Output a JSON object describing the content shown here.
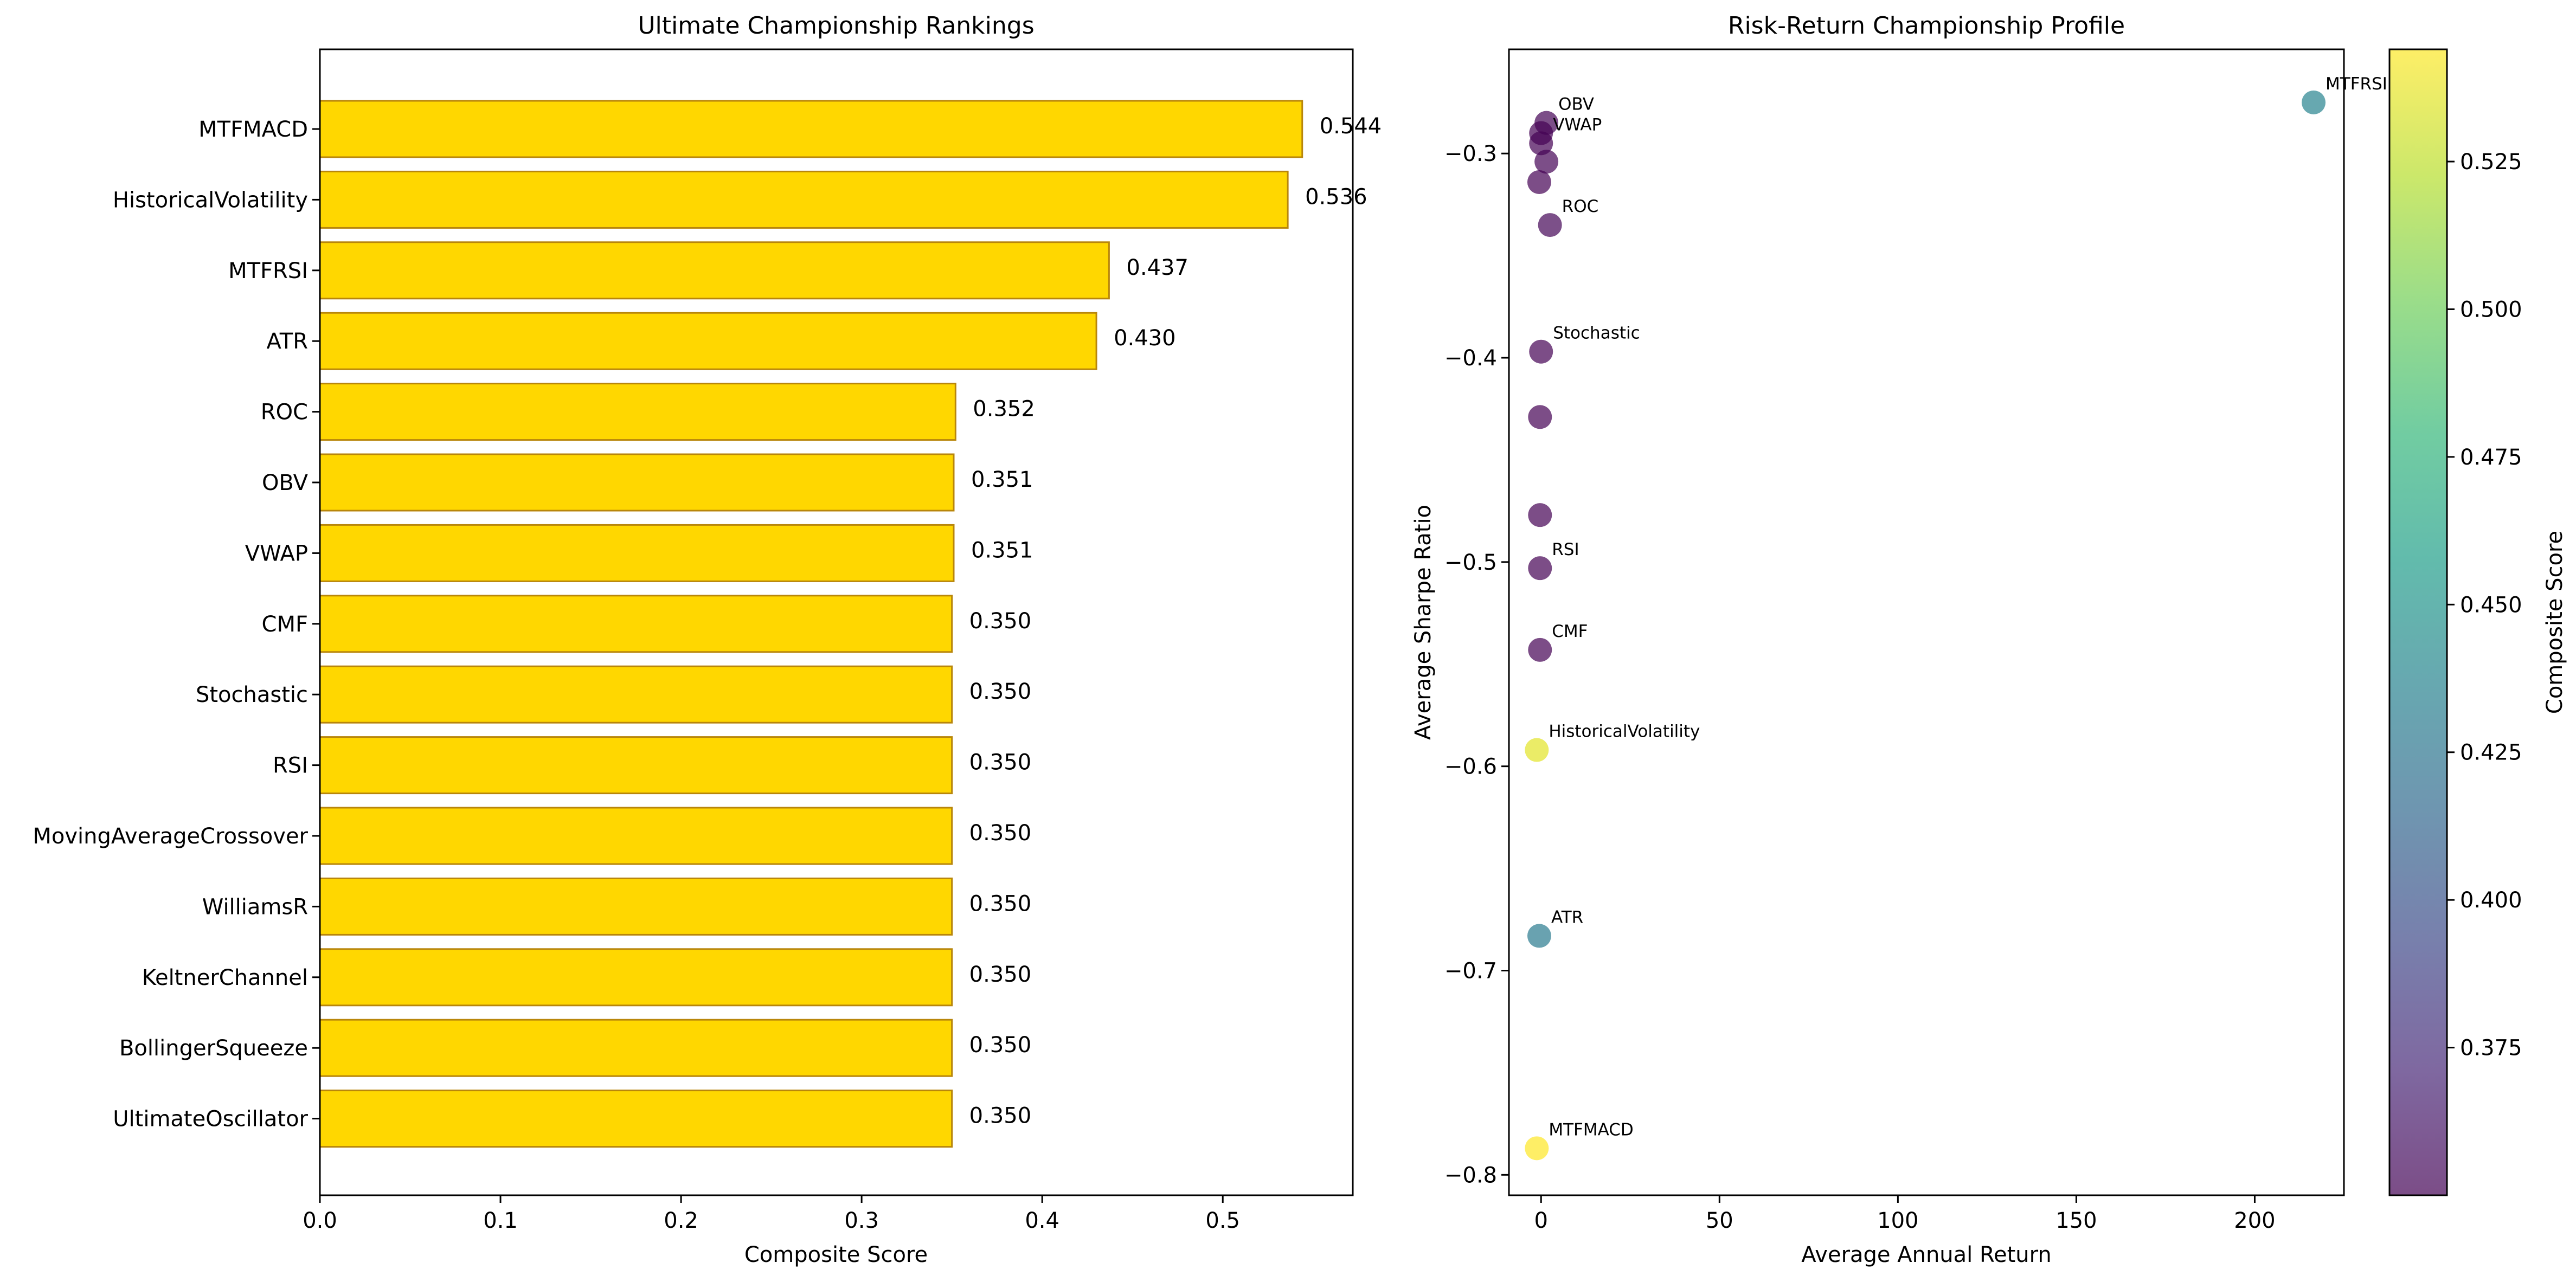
{
  "chart_data": [
    {
      "type": "bar",
      "orientation": "horizontal",
      "title": "Ultimate Championship Rankings",
      "xlabel": "Composite Score",
      "ylabel": "",
      "xlim": [
        0,
        0.572
      ],
      "xticks": [
        0.0,
        0.1,
        0.2,
        0.3,
        0.4,
        0.5
      ],
      "xtick_labels": [
        "0.0",
        "0.1",
        "0.2",
        "0.3",
        "0.4",
        "0.5"
      ],
      "categories": [
        "MTFMACD",
        "HistoricalVolatility",
        "MTFRSI",
        "ATR",
        "ROC",
        "OBV",
        "VWAP",
        "CMF",
        "Stochastic",
        "RSI",
        "MovingAverageCrossover",
        "WilliamsR",
        "KeltnerChannel",
        "BollingerSqueeze",
        "UltimateOscillator"
      ],
      "values": [
        0.544,
        0.536,
        0.437,
        0.43,
        0.352,
        0.351,
        0.351,
        0.35,
        0.35,
        0.35,
        0.35,
        0.35,
        0.35,
        0.35,
        0.35
      ],
      "value_labels": [
        "0.544",
        "0.536",
        "0.437",
        "0.430",
        "0.352",
        "0.351",
        "0.351",
        "0.350",
        "0.350",
        "0.350",
        "0.350",
        "0.350",
        "0.350",
        "0.350",
        "0.350"
      ],
      "bar_color": "#FFD700",
      "edge_color": "#B8860B"
    },
    {
      "type": "scatter",
      "title": "Risk-Return Championship Profile",
      "xlabel": "Average Annual Return",
      "ylabel": "Average Sharpe Ratio",
      "xlim": [
        -9,
        225
      ],
      "ylim": [
        -0.81,
        -0.249
      ],
      "xticks": [
        0,
        50,
        100,
        150,
        200
      ],
      "xtick_labels": [
        "0",
        "50",
        "100",
        "150",
        "200"
      ],
      "yticks": [
        -0.3,
        -0.4,
        -0.5,
        -0.6,
        -0.7,
        -0.8
      ],
      "ytick_labels": [
        "−0.3",
        "−0.4",
        "−0.5",
        "−0.6",
        "−0.7",
        "−0.8"
      ],
      "points": [
        {
          "x": 216.5,
          "y": -0.275,
          "score": 0.437,
          "label": "MTFRSI"
        },
        {
          "x": 1.5,
          "y": -0.285,
          "score": 0.351,
          "label": "OBV"
        },
        {
          "x": 0.0,
          "y": -0.29,
          "score": 0.35,
          "label": ""
        },
        {
          "x": 0.0,
          "y": -0.295,
          "score": 0.35,
          "label": "VWAP"
        },
        {
          "x": 1.5,
          "y": -0.304,
          "score": 0.351,
          "label": ""
        },
        {
          "x": -0.5,
          "y": -0.314,
          "score": 0.35,
          "label": ""
        },
        {
          "x": 2.5,
          "y": -0.335,
          "score": 0.352,
          "label": "ROC"
        },
        {
          "x": 0.0,
          "y": -0.397,
          "score": 0.35,
          "label": "Stochastic"
        },
        {
          "x": -0.3,
          "y": -0.429,
          "score": 0.35,
          "label": ""
        },
        {
          "x": -0.3,
          "y": -0.477,
          "score": 0.35,
          "label": ""
        },
        {
          "x": -0.3,
          "y": -0.503,
          "score": 0.35,
          "label": "RSI"
        },
        {
          "x": -0.3,
          "y": -0.543,
          "score": 0.35,
          "label": "CMF"
        },
        {
          "x": -1.2,
          "y": -0.592,
          "score": 0.536,
          "label": "HistoricalVolatility"
        },
        {
          "x": -0.5,
          "y": -0.683,
          "score": 0.43,
          "label": "ATR"
        },
        {
          "x": -1.2,
          "y": -0.787,
          "score": 0.544,
          "label": "MTFMACD"
        }
      ],
      "colormap": "viridis",
      "alpha": 0.7,
      "colorbar": {
        "label": "Composite Score",
        "range": [
          0.35,
          0.544
        ],
        "ticks": [
          0.375,
          0.4,
          0.425,
          0.45,
          0.475,
          0.5,
          0.525
        ],
        "tick_labels": [
          "0.375",
          "0.400",
          "0.425",
          "0.450",
          "0.475",
          "0.500",
          "0.525"
        ]
      }
    }
  ]
}
